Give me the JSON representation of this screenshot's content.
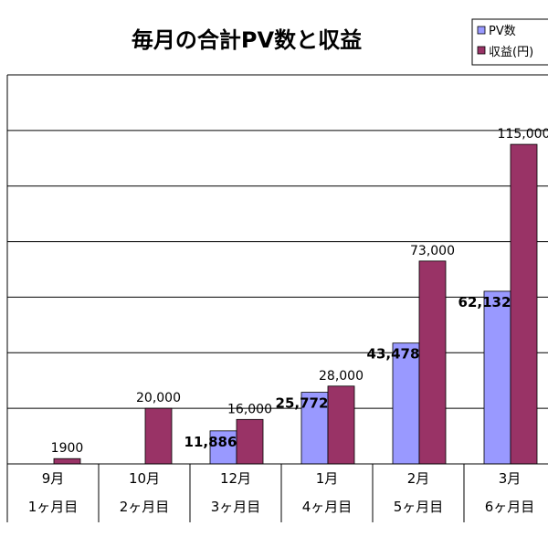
{
  "chart_data": {
    "type": "bar",
    "title": "毎月の合計PV数と収益",
    "categories": [
      "9月",
      "10月",
      "12月",
      "1月",
      "2月",
      "3月"
    ],
    "subcategories": [
      "1ヶ月目",
      "2ヶ月目",
      "3ヶ月目",
      "4ヶ月目",
      "5ヶ月目",
      "6ヶ月目"
    ],
    "series": [
      {
        "name": "PV数",
        "color": "#9999ff",
        "values": [
          null,
          null,
          11886,
          25772,
          43478,
          62132
        ],
        "labels": [
          "",
          "",
          "11,886",
          "25,772",
          "43,478",
          "62,132"
        ]
      },
      {
        "name": "収益(円)",
        "color": "#993366",
        "values": [
          1900,
          20000,
          16000,
          28000,
          73000,
          115000
        ],
        "labels": [
          "1900",
          "20,000",
          "16,000",
          "28,000",
          "73,000",
          "115,000"
        ]
      }
    ],
    "ylim": [
      0,
      140000
    ],
    "grid": true,
    "legend": "top-right"
  }
}
